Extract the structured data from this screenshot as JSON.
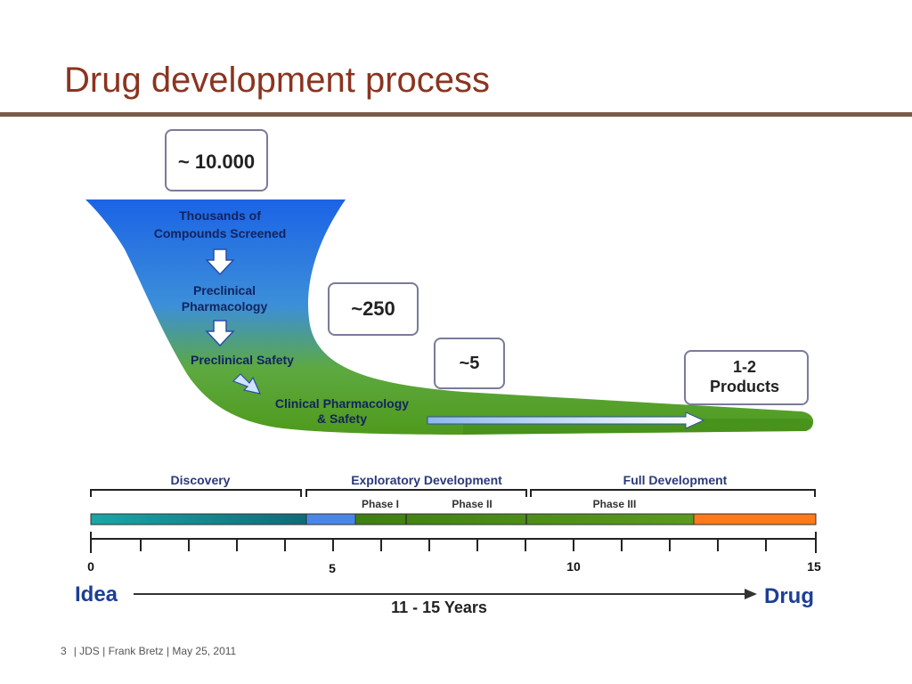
{
  "slide": {
    "title": "Drug development process",
    "footer": {
      "page_number": "3",
      "info": "| JDS | Frank Bretz | May 25, 2011"
    }
  },
  "funnel": {
    "stages": [
      {
        "label_line1": "Thousands of",
        "label_line2": "Compounds Screened"
      },
      {
        "label_line1": "Preclinical",
        "label_line2": "Pharmacology"
      },
      {
        "label_line1": "Preclinical Safety",
        "label_line2": ""
      },
      {
        "label_line1": "Clinical Pharmacology",
        "label_line2": "& Safety"
      }
    ],
    "counts": [
      {
        "line1": "~ 10.000",
        "line2": ""
      },
      {
        "line1": "~250",
        "line2": ""
      },
      {
        "line1": "~5",
        "line2": ""
      },
      {
        "line1": "1-2",
        "line2": "Products"
      }
    ],
    "colors": {
      "top": "#1f6fe0",
      "bottom": "#5aa821"
    }
  },
  "timeline": {
    "phases": [
      "Discovery",
      "Exploratory Development",
      "Full Development"
    ],
    "subphases": [
      "Phase I",
      "Phase II",
      "Phase III"
    ],
    "tick_labels": [
      "0",
      "5",
      "10",
      "15"
    ],
    "start_label": "Idea",
    "end_label": "Drug",
    "duration_label": "11 - 15 Years",
    "bar_colors": [
      "#1b9c9c",
      "#4a86e8",
      "#4f8a10",
      "#ff7a1a"
    ]
  }
}
